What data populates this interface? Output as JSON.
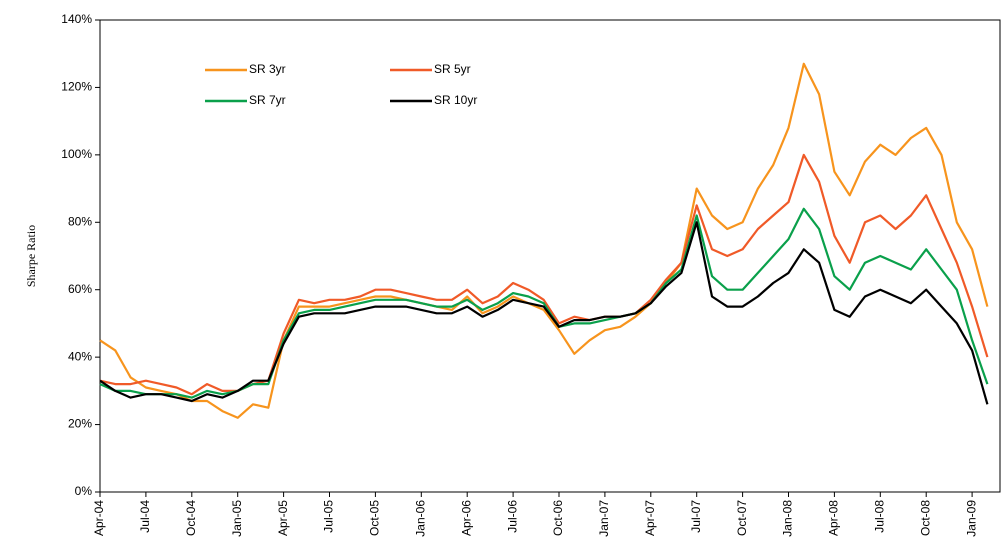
{
  "chart_data": {
    "type": "line",
    "y_label": "Sharpe Ratio",
    "categories": [
      "Apr-04",
      null,
      null,
      "Jul-04",
      null,
      null,
      "Oct-04",
      null,
      null,
      "Jan-05",
      null,
      null,
      "Apr-05",
      null,
      null,
      "Jul-05",
      null,
      null,
      "Oct-05",
      null,
      null,
      "Jan-06",
      null,
      null,
      "Apr-06",
      null,
      null,
      "Jul-06",
      null,
      null,
      "Oct-06",
      null,
      null,
      "Jan-07",
      null,
      null,
      "Apr-07",
      null,
      null,
      "Jul-07",
      null,
      null,
      "Oct-07",
      null,
      null,
      "Jan-08",
      null,
      null,
      "Apr-08",
      null,
      null,
      "Jul-08",
      null,
      null,
      "Oct-08",
      null,
      null,
      "Jan-09",
      null
    ],
    "ylim": [
      0,
      140
    ],
    "yticks": [
      {
        "value": 0,
        "label": "0%"
      },
      {
        "value": 20,
        "label": "20%"
      },
      {
        "value": 40,
        "label": "40%"
      },
      {
        "value": 60,
        "label": "60%"
      },
      {
        "value": 80,
        "label": "80%"
      },
      {
        "value": 100,
        "label": "100%"
      },
      {
        "value": 120,
        "label": "120%"
      },
      {
        "value": 140,
        "label": "140%"
      }
    ],
    "grid": false,
    "series": [
      {
        "name": "SR 3yr",
        "color": "#f7941d",
        "values": [
          45,
          42,
          34,
          31,
          30,
          29,
          27,
          27,
          24,
          22,
          26,
          25,
          45,
          55,
          55,
          55,
          56,
          57,
          58,
          58,
          57,
          56,
          55,
          54,
          58,
          53,
          55,
          58,
          56,
          54,
          48,
          41,
          45,
          48,
          49,
          52,
          56,
          62,
          68,
          90,
          82,
          78,
          80,
          90,
          97,
          108,
          127,
          118,
          95,
          88,
          98,
          103,
          100,
          105,
          108,
          100,
          80,
          72,
          55
        ]
      },
      {
        "name": "SR 5yr",
        "color": "#f05a28",
        "values": [
          33,
          32,
          32,
          33,
          32,
          31,
          29,
          32,
          30,
          30,
          32,
          33,
          47,
          57,
          56,
          57,
          57,
          58,
          60,
          60,
          59,
          58,
          57,
          57,
          60,
          56,
          58,
          62,
          60,
          57,
          50,
          52,
          51,
          52,
          52,
          53,
          57,
          63,
          68,
          85,
          72,
          70,
          72,
          78,
          82,
          86,
          100,
          92,
          76,
          68,
          80,
          82,
          78,
          82,
          88,
          78,
          68,
          55,
          40
        ]
      },
      {
        "name": "SR 7yr",
        "color": "#0aa04b",
        "values": [
          32,
          30,
          30,
          29,
          29,
          29,
          28,
          30,
          29,
          30,
          32,
          32,
          45,
          53,
          54,
          54,
          55,
          56,
          57,
          57,
          57,
          56,
          55,
          55,
          57,
          54,
          56,
          59,
          58,
          56,
          49,
          50,
          50,
          51,
          52,
          53,
          56,
          62,
          66,
          82,
          64,
          60,
          60,
          65,
          70,
          75,
          84,
          78,
          64,
          60,
          68,
          70,
          68,
          66,
          72,
          66,
          60,
          45,
          32
        ]
      },
      {
        "name": "SR 10yr",
        "color": "#000000",
        "values": [
          33,
          30,
          28,
          29,
          29,
          28,
          27,
          29,
          28,
          30,
          33,
          33,
          44,
          52,
          53,
          53,
          53,
          54,
          55,
          55,
          55,
          54,
          53,
          53,
          55,
          52,
          54,
          57,
          56,
          55,
          49,
          51,
          51,
          52,
          52,
          53,
          56,
          61,
          65,
          80,
          58,
          55,
          55,
          58,
          62,
          65,
          72,
          68,
          54,
          52,
          58,
          60,
          58,
          56,
          60,
          55,
          50,
          42,
          26
        ]
      }
    ]
  }
}
